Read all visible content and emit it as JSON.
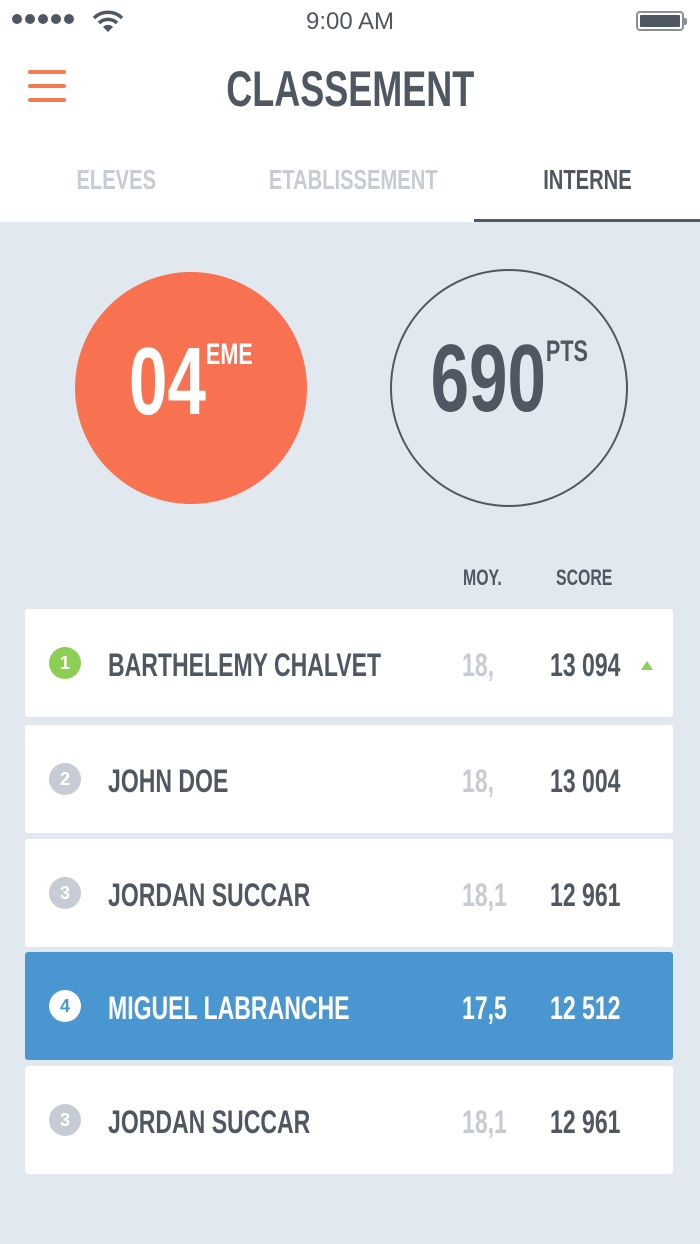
{
  "status_bar": {
    "time": "9:00 AM",
    "signal_icon": "signal-dots",
    "wifi_icon": "wifi-icon",
    "battery_icon": "battery-icon"
  },
  "header": {
    "title": "CLASSEMENT",
    "menu_icon": "hamburger-icon"
  },
  "tabs": [
    {
      "label": "ELEVES",
      "active": false
    },
    {
      "label": "ETABLISSEMENT",
      "active": false
    },
    {
      "label": "INTERNE",
      "active": true
    }
  ],
  "summary": {
    "rank": "04",
    "rank_suffix": "EME",
    "points": "690",
    "points_suffix": "PTS"
  },
  "columns": {
    "moy": "MOY.",
    "score": "SCORE"
  },
  "rows": [
    {
      "rank": "1",
      "name": "BARTHELEMY CHALVET",
      "moy": "18,",
      "score": "13 094",
      "trend": "up"
    },
    {
      "rank": "2",
      "name": "JOHN DOE",
      "moy": "18,",
      "score": "13 004"
    },
    {
      "rank": "3",
      "name": "JORDAN SUCCAR",
      "moy": "18,1",
      "score": "12 961"
    },
    {
      "rank": "4",
      "name": "MIGUEL LABRANCHE",
      "moy": "17,5",
      "score": "12 512",
      "highlighted": true
    },
    {
      "rank": "3",
      "name": "JORDAN SUCCAR",
      "moy": "18,1",
      "score": "12 961"
    }
  ],
  "colors": {
    "accent": "#f87150",
    "highlight": "#4a96d0",
    "up": "#8dcf52",
    "text": "#4f5862",
    "muted": "#c5ccd3",
    "background": "#e1e8ef"
  }
}
